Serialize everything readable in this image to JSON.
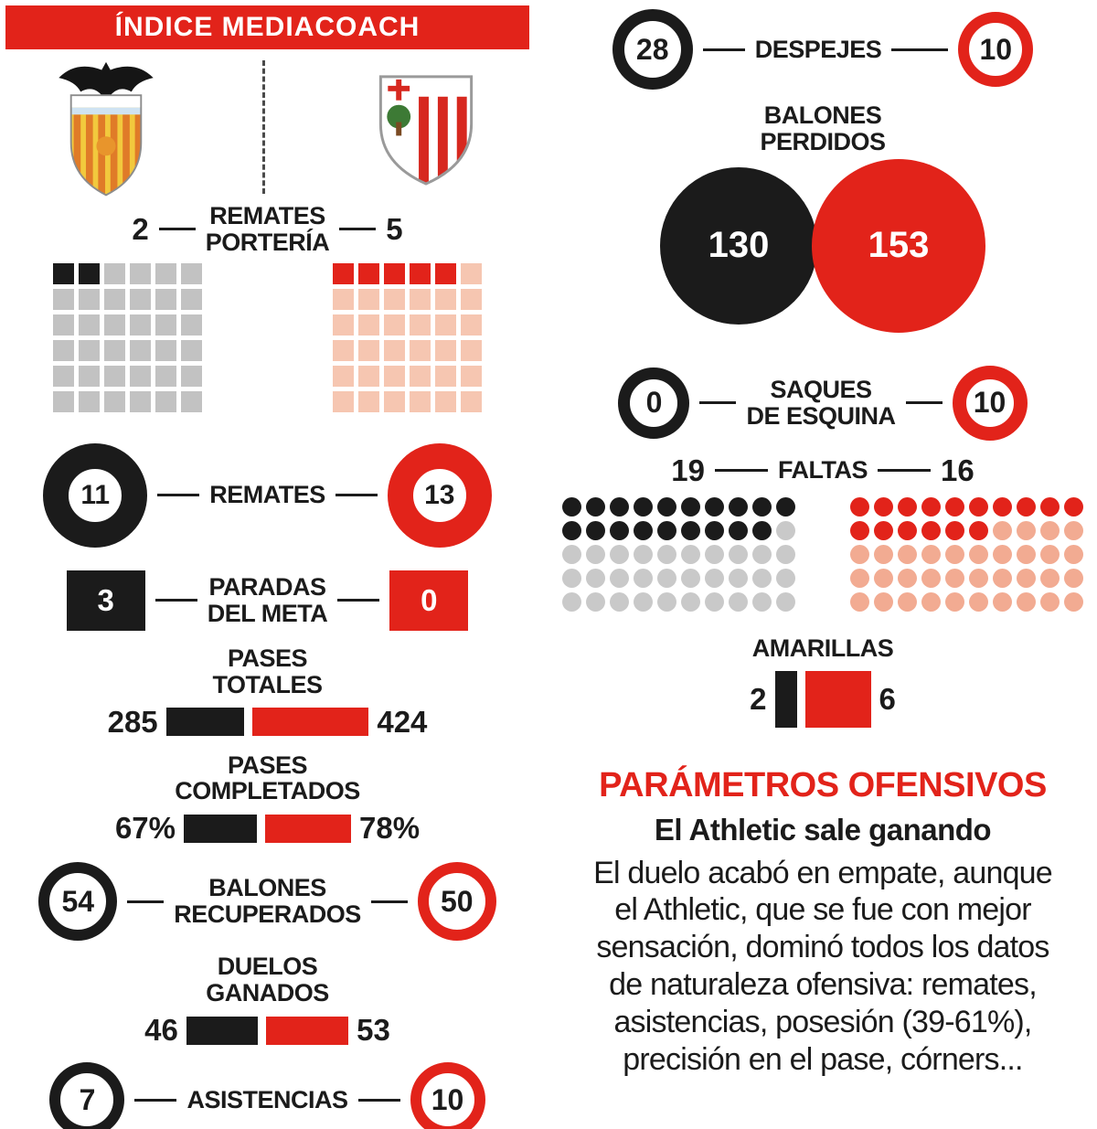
{
  "colors": {
    "home_black": "#1b1b1b",
    "away_red": "#e2231a",
    "waffle_gray_empty": "#c2c2c2",
    "waffle_salmon_empty": "#f6c6b1",
    "dot_gray_empty": "#c9c9c9",
    "dot_salmon_empty": "#f2ab92"
  },
  "header": {
    "title": "ÍNDICE MEDIACOACH"
  },
  "teams": {
    "home": {
      "name": "Valencia",
      "color": "#1b1b1b"
    },
    "away": {
      "name": "Athletic",
      "color": "#e2231a"
    }
  },
  "left": {
    "remates_porteria": {
      "line1": "REMATES",
      "line2": "PORTERÍA",
      "home": "2",
      "away": "5"
    },
    "remates": {
      "label": "REMATES",
      "home": "11",
      "away": "13"
    },
    "paradas": {
      "line1": "PARADAS",
      "line2": "DEL META",
      "home": "3",
      "away": "0"
    },
    "pases_totales": {
      "line1": "PASES",
      "line2": "TOTALES",
      "home": "285",
      "away": "424",
      "home_val": 285,
      "away_val": 424
    },
    "pases_completados": {
      "line1": "PASES",
      "line2": "COMPLETADOS",
      "home": "67%",
      "away": "78%",
      "home_val": 67,
      "away_val": 78
    },
    "balones_recuperados": {
      "line1": "BALONES",
      "line2": "RECUPERADOS",
      "home": "54",
      "away": "50"
    },
    "duelos_ganados": {
      "line1": "DUELOS",
      "line2": "GANADOS",
      "home": "46",
      "away": "53",
      "home_val": 46,
      "away_val": 53
    },
    "asistencias": {
      "label": "ASISTENCIAS",
      "home": "7",
      "away": "10"
    }
  },
  "right": {
    "despejes": {
      "label": "DESPEJES",
      "home": "28",
      "away": "10"
    },
    "balones_perdidos": {
      "line1": "BALONES",
      "line2": "PERDIDOS",
      "home": "130",
      "away": "153"
    },
    "saques_esquina": {
      "line1": "SAQUES",
      "line2": "DE ESQUINA",
      "home": "0",
      "away": "10"
    },
    "faltas": {
      "label": "FALTAS",
      "home": "19",
      "away": "16"
    },
    "amarillas": {
      "label": "AMARILLAS",
      "home": "2",
      "away": "6",
      "home_val": 2,
      "away_val": 6
    }
  },
  "waffles": {
    "remates_porteria_home": {
      "rows": 6,
      "cols": 6,
      "filled": 2,
      "fill": "#1b1b1b",
      "empty": "#c2c2c2",
      "shape": "square"
    },
    "remates_porteria_away": {
      "rows": 6,
      "cols": 6,
      "filled": 5,
      "fill": "#e2231a",
      "empty": "#f6c6b1",
      "shape": "square"
    },
    "faltas_home": {
      "rows": 5,
      "cols": 10,
      "filled": 19,
      "fill": "#1b1b1b",
      "empty": "#c9c9c9",
      "shape": "circle"
    },
    "faltas_away": {
      "rows": 5,
      "cols": 10,
      "filled": 16,
      "fill": "#e2231a",
      "empty": "#f2ab92",
      "shape": "circle"
    }
  },
  "article": {
    "heading": "PARÁMETROS OFENSIVOS",
    "subheading": "El Athletic sale ganando",
    "body": "El duelo acabó en empate, aunque\nel Athletic, que se fue con mejor\nsensación, dominó todos los datos\nde naturaleza ofensiva: remates,\nasistencias, posesión (39-61%),\nprecisión en el pase, córners..."
  },
  "chart_data": {
    "type": "table",
    "title": "ÍNDICE MEDIACOACH",
    "series": [
      {
        "name": "Valencia",
        "color": "#1b1b1b"
      },
      {
        "name": "Athletic",
        "color": "#e2231a"
      }
    ],
    "categories": [
      "Remates portería",
      "Remates",
      "Paradas del meta",
      "Pases totales",
      "Pases completados (%)",
      "Balones recuperados",
      "Duelos ganados",
      "Asistencias",
      "Despejes",
      "Balones perdidos",
      "Saques de esquina",
      "Faltas",
      "Amarillas"
    ],
    "values": [
      [
        2,
        5
      ],
      [
        11,
        13
      ],
      [
        3,
        0
      ],
      [
        285,
        424
      ],
      [
        67,
        78
      ],
      [
        54,
        50
      ],
      [
        46,
        53
      ],
      [
        7,
        10
      ],
      [
        28,
        10
      ],
      [
        130,
        153
      ],
      [
        0,
        10
      ],
      [
        19,
        16
      ],
      [
        2,
        6
      ]
    ]
  }
}
